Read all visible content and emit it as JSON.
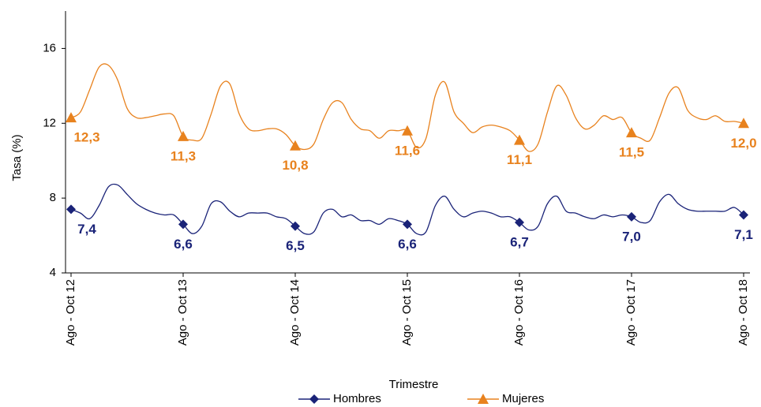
{
  "chart_data": {
    "type": "line",
    "x_label": "Trimestre",
    "y_label": "Tasa (%)",
    "categories": [
      "Ago - Oct 12",
      null,
      null,
      null,
      null,
      null,
      null,
      null,
      null,
      null,
      null,
      null,
      "Ago - Oct 13",
      null,
      null,
      null,
      null,
      null,
      null,
      null,
      null,
      null,
      null,
      null,
      "Ago - Oct 14",
      null,
      null,
      null,
      null,
      null,
      null,
      null,
      null,
      null,
      null,
      null,
      "Ago - Oct 15",
      null,
      null,
      null,
      null,
      null,
      null,
      null,
      null,
      null,
      null,
      null,
      "Ago - Oct 16",
      null,
      null,
      null,
      null,
      null,
      null,
      null,
      null,
      null,
      null,
      null,
      "Ago - Oct 17",
      null,
      null,
      null,
      null,
      null,
      null,
      null,
      null,
      null,
      null,
      null,
      "Ago - Oct 18"
    ],
    "series": [
      {
        "name": "Hombres",
        "color": "#1a2378",
        "marker": "diamond",
        "values": [
          7.4,
          7.2,
          6.9,
          7.6,
          8.6,
          8.7,
          8.2,
          7.7,
          7.4,
          7.2,
          7.1,
          7.1,
          6.6,
          6.1,
          6.5,
          7.7,
          7.8,
          7.3,
          7.0,
          7.2,
          7.2,
          7.2,
          7.0,
          6.9,
          6.5,
          6.1,
          6.2,
          7.2,
          7.4,
          7.0,
          7.1,
          6.8,
          6.8,
          6.6,
          6.9,
          6.8,
          6.6,
          6.1,
          6.2,
          7.6,
          8.1,
          7.4,
          7.0,
          7.2,
          7.3,
          7.2,
          7.0,
          7.0,
          6.7,
          6.3,
          6.5,
          7.7,
          8.1,
          7.3,
          7.2,
          7.0,
          6.9,
          7.1,
          7.0,
          7.1,
          7.0,
          6.7,
          6.8,
          7.8,
          8.2,
          7.7,
          7.4,
          7.3,
          7.3,
          7.3,
          7.3,
          7.5,
          7.1
        ],
        "value_labels": [
          "7,4",
          null,
          null,
          null,
          null,
          null,
          null,
          null,
          null,
          null,
          null,
          null,
          "6,6",
          null,
          null,
          null,
          null,
          null,
          null,
          null,
          null,
          null,
          null,
          null,
          "6,5",
          null,
          null,
          null,
          null,
          null,
          null,
          null,
          null,
          null,
          null,
          null,
          "6,6",
          null,
          null,
          null,
          null,
          null,
          null,
          null,
          null,
          null,
          null,
          null,
          "6,7",
          null,
          null,
          null,
          null,
          null,
          null,
          null,
          null,
          null,
          null,
          null,
          "7,0",
          null,
          null,
          null,
          null,
          null,
          null,
          null,
          null,
          null,
          null,
          null,
          "7,1"
        ]
      },
      {
        "name": "Mujeres",
        "color": "#e8821e",
        "marker": "triangle",
        "values": [
          12.3,
          12.6,
          13.8,
          15.0,
          15.1,
          14.3,
          12.8,
          12.3,
          12.3,
          12.4,
          12.5,
          12.4,
          11.3,
          11.1,
          11.2,
          12.5,
          14.0,
          14.1,
          12.5,
          11.7,
          11.6,
          11.7,
          11.7,
          11.4,
          10.8,
          10.6,
          10.9,
          12.2,
          13.1,
          13.1,
          12.2,
          11.7,
          11.6,
          11.2,
          11.6,
          11.6,
          11.6,
          10.7,
          11.2,
          13.5,
          14.2,
          12.6,
          12.0,
          11.5,
          11.8,
          11.9,
          11.8,
          11.6,
          11.1,
          10.5,
          10.9,
          12.6,
          14.0,
          13.5,
          12.3,
          11.7,
          11.9,
          12.4,
          12.2,
          12.3,
          11.5,
          11.2,
          11.1,
          12.3,
          13.6,
          13.9,
          12.7,
          12.3,
          12.2,
          12.4,
          12.1,
          12.1,
          12.0
        ],
        "value_labels": [
          "12,3",
          null,
          null,
          null,
          null,
          null,
          null,
          null,
          null,
          null,
          null,
          null,
          "11,3",
          null,
          null,
          null,
          null,
          null,
          null,
          null,
          null,
          null,
          null,
          null,
          "10,8",
          null,
          null,
          null,
          null,
          null,
          null,
          null,
          null,
          null,
          null,
          null,
          "11,6",
          null,
          null,
          null,
          null,
          null,
          null,
          null,
          null,
          null,
          null,
          null,
          "11,1",
          null,
          null,
          null,
          null,
          null,
          null,
          null,
          null,
          null,
          null,
          null,
          "11,5",
          null,
          null,
          null,
          null,
          null,
          null,
          null,
          null,
          null,
          null,
          null,
          "12,0"
        ]
      }
    ],
    "ylim": [
      4,
      18
    ],
    "yticks": [
      4,
      8,
      12,
      16
    ],
    "grid": false,
    "legend": "bottom"
  }
}
